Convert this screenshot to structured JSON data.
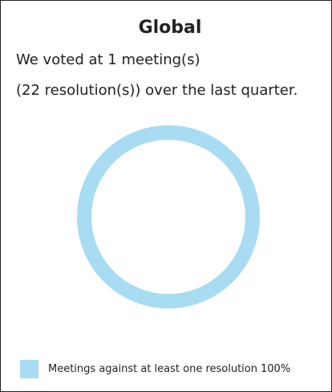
{
  "chart_data": {
    "type": "donut",
    "title": "Global",
    "subtitle": [
      "We voted at 1 meeting(s)",
      "(22 resolution(s)) over the last quarter."
    ],
    "categories": [
      "Meetings against at least one resolution"
    ],
    "values": [
      100
    ],
    "value_labels": [
      "100%"
    ],
    "colors": [
      "#a8dcf2"
    ],
    "legend": "bottom-left"
  }
}
